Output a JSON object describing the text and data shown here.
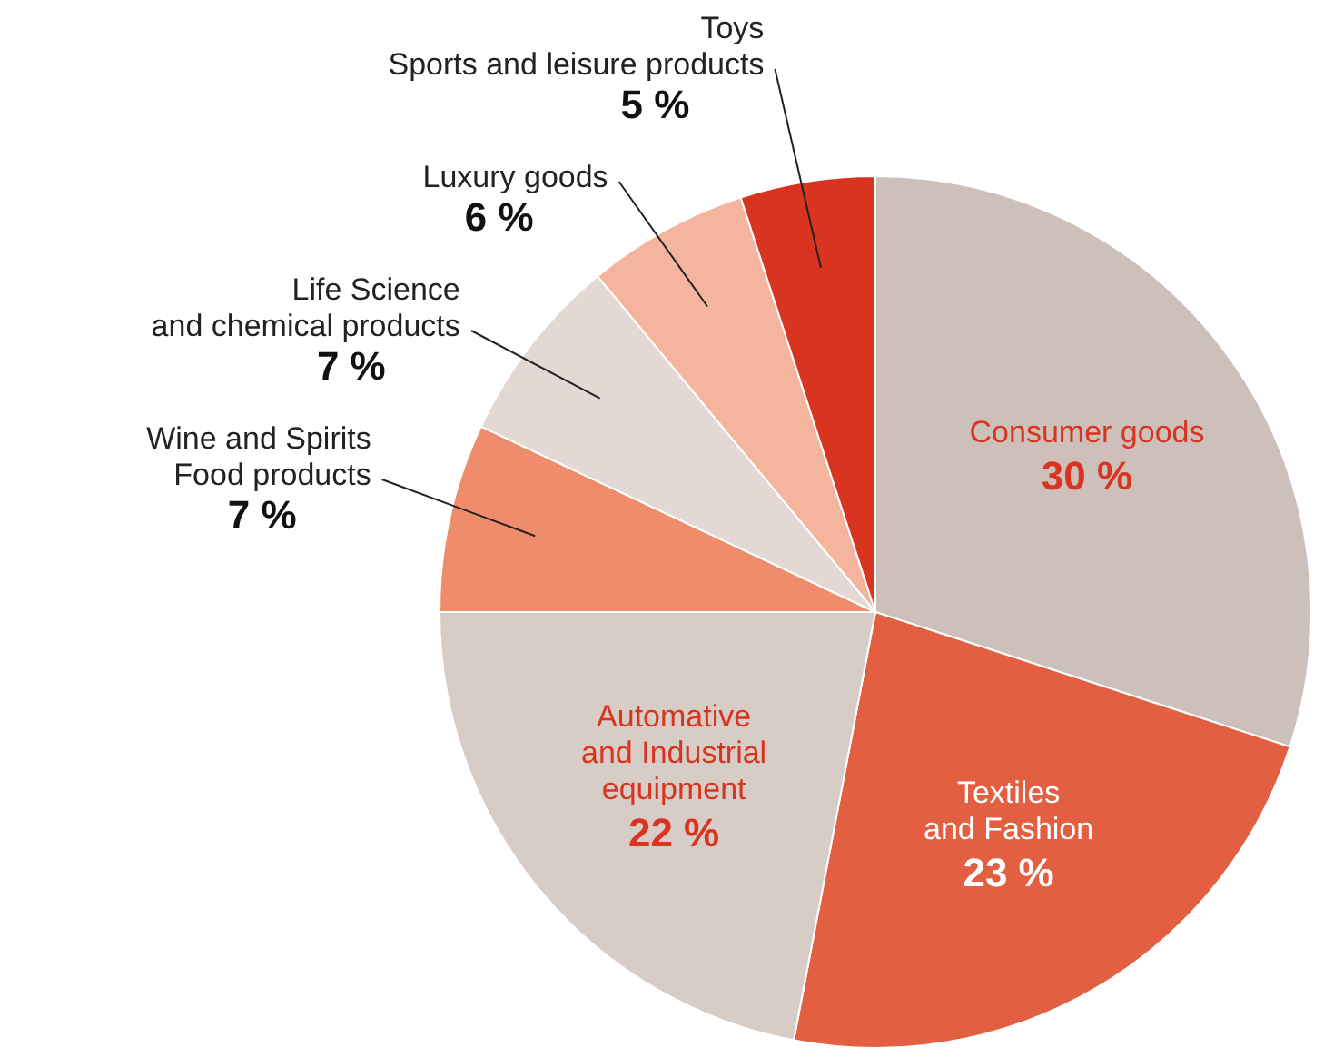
{
  "chart_data": {
    "type": "pie",
    "categories": [
      "Consumer goods",
      "Textiles\nand Fashion",
      "Automative\nand Industrial\nequipment",
      "Wine and Spirits\nFood products",
      "Life Science\nand chemical products",
      "Luxury goods",
      "Toys\nSports and leisure products"
    ],
    "values": [
      30,
      23,
      22,
      7,
      7,
      6,
      5
    ],
    "value_labels": [
      "30 %",
      "23 %",
      "22 %",
      "7 %",
      "7 %",
      "6 %",
      "5 %"
    ],
    "colors": [
      "#cdc0ba",
      "#e35f42",
      "#d8ccc6",
      "#ef8c6c",
      "#e3d8d3",
      "#f5b49d",
      "#d93420"
    ]
  }
}
